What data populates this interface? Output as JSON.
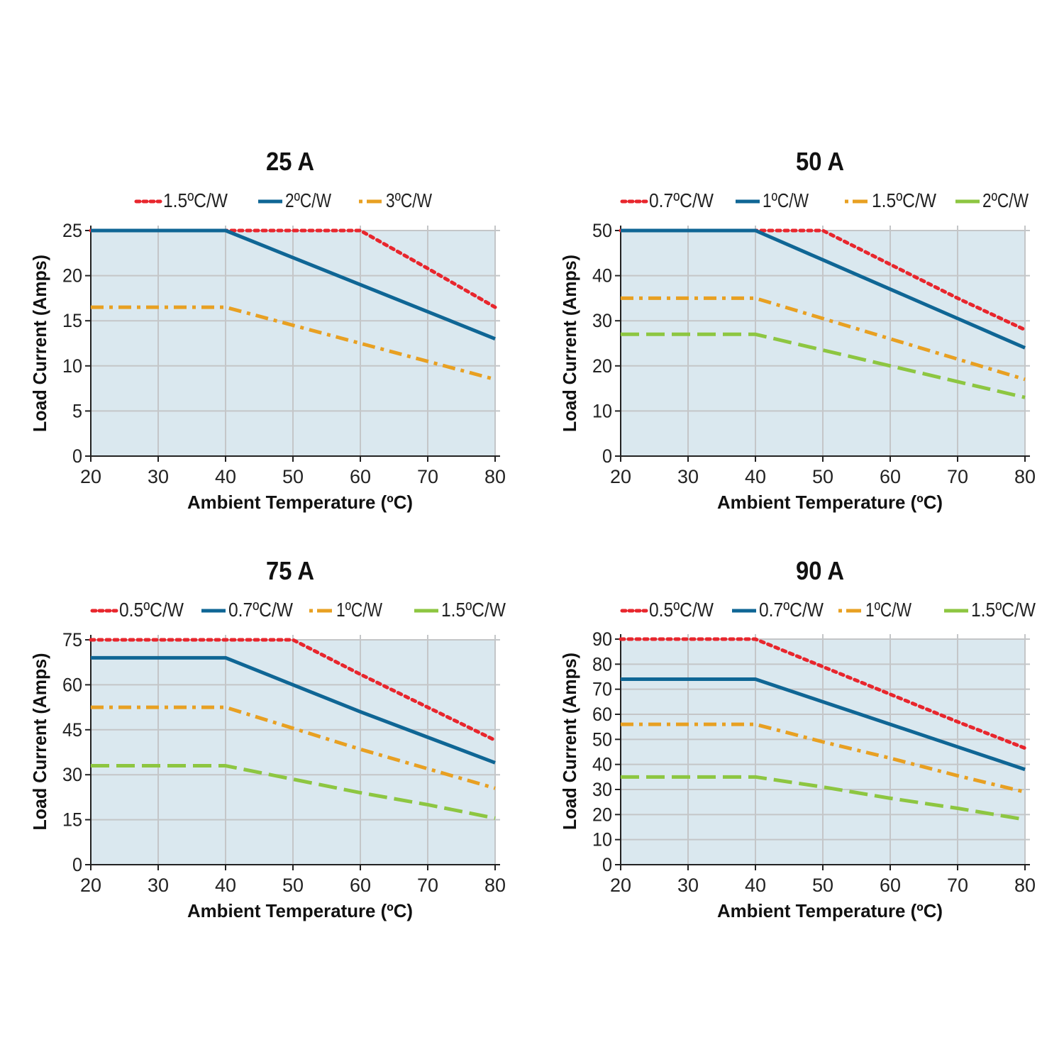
{
  "colors": {
    "plot_fill": "#dae8ef",
    "grid": "#c4c6c8",
    "axis": "#222222"
  },
  "chart_data": [
    {
      "type": "line",
      "title": "25 A",
      "xlabel": "Ambient Temperature (ºC)",
      "ylabel": "Load Current (Amps)",
      "xlim": [
        20,
        80
      ],
      "ylim": [
        0,
        25
      ],
      "xticks": [
        20,
        30,
        40,
        50,
        60,
        70,
        80
      ],
      "yticks": [
        0,
        5,
        10,
        15,
        20,
        25
      ],
      "grid": true,
      "legend": "top",
      "series": [
        {
          "name": "1.5ºC/W",
          "color": "#e8262d",
          "style": "dotted",
          "x": [
            20,
            40,
            60,
            70,
            80
          ],
          "y": [
            25,
            25,
            25,
            20.8,
            16.5
          ]
        },
        {
          "name": "2ºC/W",
          "color": "#0f6695",
          "style": "solid",
          "x": [
            20,
            40,
            50,
            60,
            70,
            80
          ],
          "y": [
            25,
            25,
            22,
            19,
            16,
            13
          ]
        },
        {
          "name": "3ºC/W",
          "color": "#e8a022",
          "style": "dashdot",
          "x": [
            20,
            40,
            50,
            60,
            70,
            80
          ],
          "y": [
            16.5,
            16.5,
            14.5,
            12.5,
            10.5,
            8.5
          ]
        }
      ]
    },
    {
      "type": "line",
      "title": "50 A",
      "xlabel": "Ambient Temperature (ºC)",
      "ylabel": "Load Current (Amps)",
      "xlim": [
        20,
        80
      ],
      "ylim": [
        0,
        50
      ],
      "xticks": [
        20,
        30,
        40,
        50,
        60,
        70,
        80
      ],
      "yticks": [
        0,
        10,
        20,
        30,
        40,
        50
      ],
      "grid": true,
      "legend": "top",
      "series": [
        {
          "name": "0.7ºC/W",
          "color": "#e8262d",
          "style": "dotted",
          "x": [
            20,
            50,
            60,
            70,
            80
          ],
          "y": [
            50,
            50,
            42.5,
            35,
            28
          ]
        },
        {
          "name": "1ºC/W",
          "color": "#0f6695",
          "style": "solid",
          "x": [
            20,
            40,
            50,
            60,
            70,
            80
          ],
          "y": [
            50,
            50,
            43.5,
            37,
            30.5,
            24
          ]
        },
        {
          "name": "1.5ºC/W",
          "color": "#e8a022",
          "style": "dashdot",
          "x": [
            20,
            40,
            50,
            60,
            70,
            80
          ],
          "y": [
            35,
            35,
            30.5,
            26,
            21.5,
            17
          ]
        },
        {
          "name": "2ºC/W",
          "color": "#8dc641",
          "style": "dashed",
          "x": [
            20,
            40,
            50,
            60,
            70,
            80
          ],
          "y": [
            27,
            27,
            23.5,
            20,
            16.5,
            13
          ]
        }
      ]
    },
    {
      "type": "line",
      "title": "75 A",
      "xlabel": "Ambient Temperature (ºC)",
      "ylabel": "Load Current (Amps)",
      "xlim": [
        20,
        80
      ],
      "ylim": [
        0,
        75
      ],
      "xticks": [
        20,
        30,
        40,
        50,
        60,
        70,
        80
      ],
      "yticks": [
        0,
        15,
        30,
        45,
        60,
        75
      ],
      "grid": true,
      "legend": "top",
      "series": [
        {
          "name": "0.5ºC/W",
          "color": "#e8262d",
          "style": "dotted",
          "x": [
            20,
            50,
            60,
            70,
            80
          ],
          "y": [
            75,
            75,
            63.5,
            52.5,
            41.5
          ]
        },
        {
          "name": "0.7ºC/W",
          "color": "#0f6695",
          "style": "solid",
          "x": [
            20,
            40,
            50,
            60,
            70,
            80
          ],
          "y": [
            69,
            69,
            60,
            51,
            42.5,
            34
          ]
        },
        {
          "name": "1ºC/W",
          "color": "#e8a022",
          "style": "dashdot",
          "x": [
            20,
            40,
            50,
            60,
            70,
            80
          ],
          "y": [
            52.5,
            52.5,
            45.5,
            38.5,
            32,
            25.5
          ]
        },
        {
          "name": "1.5ºC/W",
          "color": "#8dc641",
          "style": "dashed",
          "x": [
            20,
            40,
            50,
            60,
            70,
            80
          ],
          "y": [
            33,
            33,
            28.5,
            24,
            20,
            15.5
          ]
        }
      ]
    },
    {
      "type": "line",
      "title": "90 A",
      "xlabel": "Ambient Temperature (ºC)",
      "ylabel": "Load Current (Amps)",
      "xlim": [
        20,
        80
      ],
      "ylim": [
        0,
        90
      ],
      "xticks": [
        20,
        30,
        40,
        50,
        60,
        70,
        80
      ],
      "yticks": [
        0,
        10,
        20,
        30,
        40,
        50,
        60,
        70,
        80,
        90
      ],
      "grid": true,
      "legend": "top",
      "series": [
        {
          "name": "0.5ºC/W",
          "color": "#e8262d",
          "style": "dotted",
          "x": [
            20,
            40,
            50,
            60,
            70,
            80
          ],
          "y": [
            90,
            90,
            79,
            68,
            57,
            46.5
          ]
        },
        {
          "name": "0.7ºC/W",
          "color": "#0f6695",
          "style": "solid",
          "x": [
            20,
            40,
            50,
            60,
            70,
            80
          ],
          "y": [
            74,
            74,
            65,
            56,
            47,
            38
          ]
        },
        {
          "name": "1ºC/W",
          "color": "#e8a022",
          "style": "dashdot",
          "x": [
            20,
            40,
            50,
            60,
            70,
            80
          ],
          "y": [
            56,
            56,
            49,
            42.5,
            35.5,
            29
          ]
        },
        {
          "name": "1.5ºC/W",
          "color": "#8dc641",
          "style": "dashed",
          "x": [
            20,
            40,
            50,
            60,
            70,
            80
          ],
          "y": [
            35,
            35,
            31,
            26.5,
            22.5,
            18
          ]
        }
      ]
    }
  ]
}
